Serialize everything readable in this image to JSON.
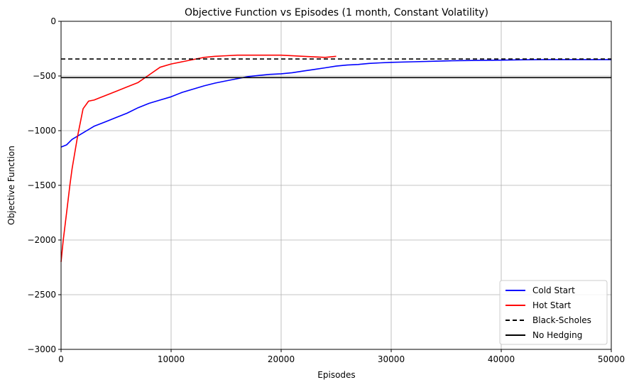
{
  "chart_data": {
    "type": "line",
    "title": "Objective Function vs Episodes (1 month, Constant Volatility)",
    "xlabel": "Episodes",
    "ylabel": "Objective Function",
    "xlim": [
      0,
      50000
    ],
    "ylim": [
      -3000,
      0
    ],
    "x_ticks": [
      0,
      10000,
      20000,
      30000,
      40000,
      50000
    ],
    "y_ticks": [
      0,
      -500,
      -1000,
      -1500,
      -2000,
      -2500,
      -3000
    ],
    "grid": true,
    "legend_position": "lower-right",
    "series": [
      {
        "name": "Cold Start",
        "color": "#0000ff",
        "style": "solid",
        "x": [
          0,
          500,
          1000,
          2000,
          3000,
          4000,
          5000,
          6000,
          7000,
          8000,
          9000,
          10000,
          11000,
          12000,
          13000,
          14000,
          15000,
          16000,
          17000,
          18000,
          19000,
          20000,
          21000,
          22000,
          23000,
          24000,
          25000,
          26000,
          27000,
          28000,
          29000,
          30000,
          32000,
          34000,
          36000,
          38000,
          40000,
          42000,
          44000,
          46000,
          48000,
          50000
        ],
        "values": [
          -1150,
          -1130,
          -1080,
          -1020,
          -960,
          -920,
          -880,
          -840,
          -790,
          -750,
          -720,
          -690,
          -650,
          -620,
          -590,
          -565,
          -545,
          -525,
          -505,
          -495,
          -485,
          -480,
          -470,
          -455,
          -440,
          -425,
          -410,
          -400,
          -395,
          -385,
          -380,
          -375,
          -370,
          -365,
          -360,
          -358,
          -355,
          -352,
          -350,
          -350,
          -350,
          -350
        ]
      },
      {
        "name": "Hot Start",
        "color": "#ff0000",
        "style": "solid",
        "x": [
          0,
          200,
          500,
          800,
          1000,
          1500,
          2000,
          2500,
          3000,
          3500,
          4000,
          5000,
          6000,
          7000,
          8000,
          9000,
          10000,
          11000,
          12000,
          13000,
          14000,
          15000,
          16000,
          18000,
          20000,
          22000,
          24000,
          25000
        ],
        "values": [
          -2200,
          -2000,
          -1750,
          -1500,
          -1350,
          -1050,
          -800,
          -730,
          -720,
          -700,
          -680,
          -640,
          -600,
          -560,
          -490,
          -420,
          -390,
          -370,
          -350,
          -330,
          -320,
          -315,
          -310,
          -310,
          -310,
          -320,
          -330,
          -320
        ]
      },
      {
        "name": "Black-Scholes",
        "color": "#000000",
        "style": "dashed",
        "x": [
          0,
          50000
        ],
        "values": [
          -345,
          -345
        ]
      },
      {
        "name": "No Hedging",
        "color": "#000000",
        "style": "solid",
        "x": [
          0,
          50000
        ],
        "values": [
          -515,
          -515
        ]
      }
    ]
  }
}
